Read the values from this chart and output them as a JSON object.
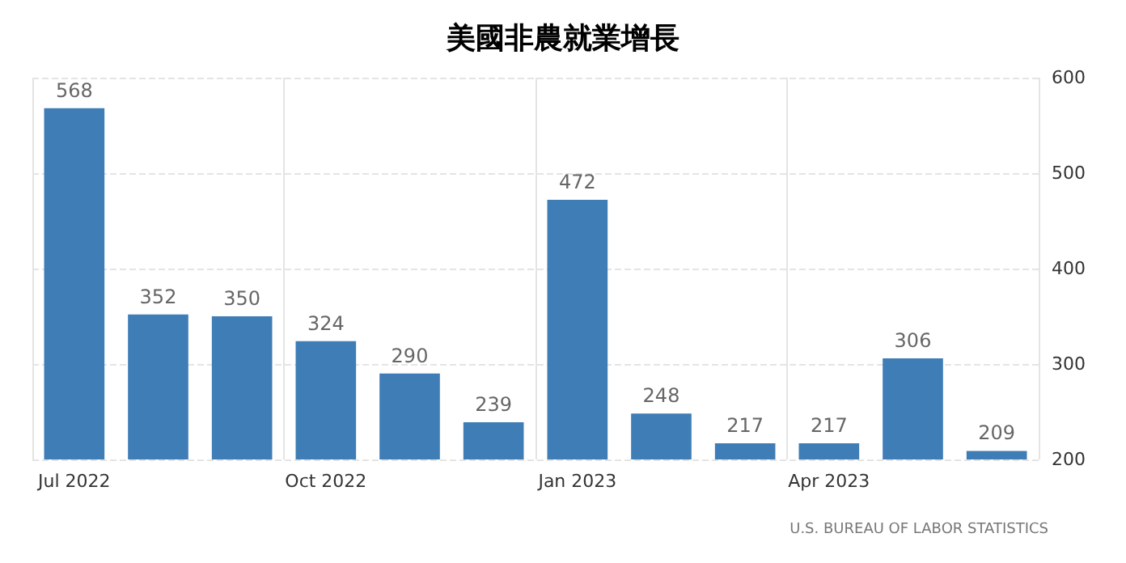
{
  "chart_data": {
    "type": "bar",
    "title": "美國非農就業增長",
    "categories": [
      "Jul 2022",
      null,
      null,
      "Oct 2022",
      null,
      null,
      "Jan 2023",
      null,
      null,
      "Apr 2023",
      null,
      null
    ],
    "values": [
      568,
      352,
      350,
      324,
      290,
      239,
      472,
      248,
      217,
      217,
      306,
      209
    ],
    "color": "#3f7db6",
    "ylim": [
      200,
      600
    ],
    "yticks": [
      200,
      300,
      400,
      500,
      600
    ],
    "grid": true,
    "data_labels": true,
    "annotations": [
      "U.S. BUREAU OF LABOR STATISTICS"
    ]
  }
}
